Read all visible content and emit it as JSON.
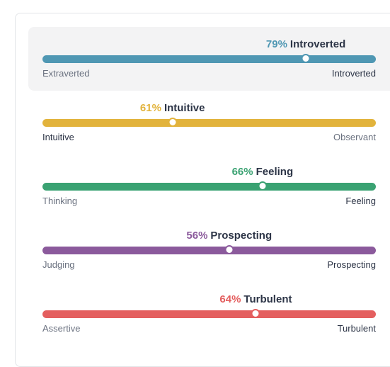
{
  "traits": [
    {
      "percent": "79%",
      "percent_value": 79,
      "trait": "Introverted",
      "left_label": "Extraverted",
      "right_label": "Introverted",
      "selected_side": "right",
      "color": "#4f97b3",
      "active": true
    },
    {
      "percent": "61%",
      "percent_value": 39,
      "trait": "Intuitive",
      "left_label": "Intuitive",
      "right_label": "Observant",
      "selected_side": "left",
      "color": "#e2b33c",
      "active": false
    },
    {
      "percent": "66%",
      "percent_value": 66,
      "trait": "Feeling",
      "left_label": "Thinking",
      "right_label": "Feeling",
      "selected_side": "right",
      "color": "#3aa272",
      "active": false
    },
    {
      "percent": "56%",
      "percent_value": 56,
      "trait": "Prospecting",
      "left_label": "Judging",
      "right_label": "Prospecting",
      "selected_side": "right",
      "color": "#8b5a9c",
      "active": false
    },
    {
      "percent": "64%",
      "percent_value": 64,
      "trait": "Turbulent",
      "left_label": "Assertive",
      "right_label": "Turbulent",
      "selected_side": "right",
      "color": "#e45f5f",
      "active": false
    }
  ]
}
